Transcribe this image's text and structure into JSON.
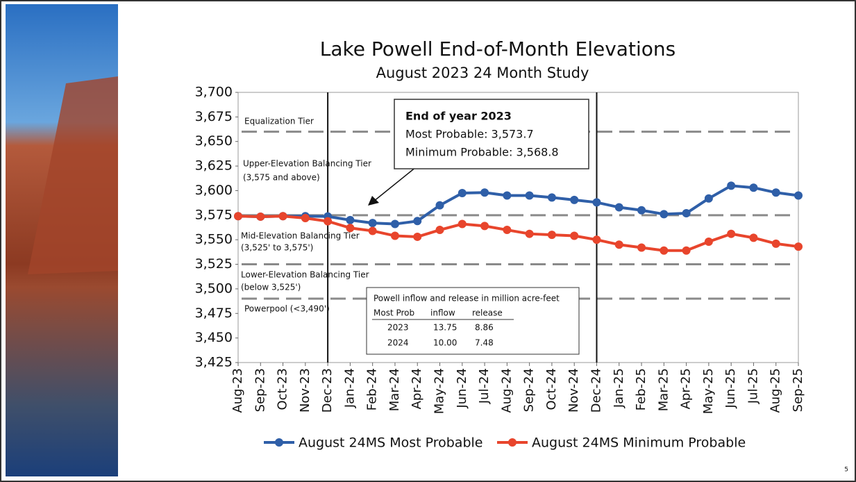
{
  "chart_data": {
    "type": "line",
    "title": "Lake Powell End-of-Month Elevations",
    "subtitle": "August 2023  24 Month Study",
    "categories": [
      "Aug-23",
      "Sep-23",
      "Oct-23",
      "Nov-23",
      "Dec-23",
      "Jan-24",
      "Feb-24",
      "Mar-24",
      "Apr-24",
      "May-24",
      "Jun-24",
      "Jul-24",
      "Aug-24",
      "Sep-24",
      "Oct-24",
      "Nov-24",
      "Dec-24",
      "Jan-25",
      "Feb-25",
      "Mar-25",
      "Apr-25",
      "May-25",
      "Jun-25",
      "Jul-25",
      "Aug-25",
      "Sep-25"
    ],
    "series": [
      {
        "name": "August 24MS Most Probable",
        "color": "#2f5fa8",
        "values": [
          3574,
          3573.5,
          3574,
          3574,
          3573.7,
          3570,
          3567,
          3566,
          3569,
          3585,
          3597.5,
          3598,
          3595,
          3595,
          3593,
          3590.5,
          3588,
          3583,
          3580,
          3576,
          3577,
          3592,
          3605,
          3603,
          3598,
          3595
        ]
      },
      {
        "name": "August 24MS Minimum Probable",
        "color": "#e8452c",
        "values": [
          3574,
          3573.5,
          3574,
          3572,
          3568.8,
          3562,
          3559,
          3554,
          3553,
          3560,
          3566,
          3564,
          3560,
          3556,
          3555,
          3554,
          3550,
          3545,
          3542,
          3539,
          3539,
          3548,
          3556,
          3552,
          3546,
          3543
        ]
      }
    ],
    "ylim": [
      3425,
      3700
    ],
    "yticks": [
      {
        "value": 3425,
        "label": "3,425"
      },
      {
        "value": 3450,
        "label": "3,450"
      },
      {
        "value": 3475,
        "label": "3,475"
      },
      {
        "value": 3500,
        "label": "3,500"
      },
      {
        "value": 3525,
        "label": "3,525"
      },
      {
        "value": 3550,
        "label": "3,550"
      },
      {
        "value": 3575,
        "label": "3,575"
      },
      {
        "value": 3600,
        "label": "3,600"
      },
      {
        "value": 3625,
        "label": "3,625"
      },
      {
        "value": 3650,
        "label": "3,650"
      },
      {
        "value": 3675,
        "label": "3,675"
      },
      {
        "value": 3700,
        "label": "3,700"
      }
    ],
    "grid": false,
    "reference_lines": [
      3660,
      3575,
      3525,
      3490
    ],
    "vertical_lines": [
      "Dec-23",
      "Dec-24"
    ],
    "tier_labels": [
      "Equalization Tier",
      "Upper-Elevation Balancing Tier",
      "(3,575 and above)",
      "Mid-Elevation Balancing Tier",
      "(3,525' to 3,575')",
      "Lower-Elevation Balancing Tier",
      "(below 3,525')",
      "Powerpool (<3,490')"
    ],
    "annotation": {
      "title": "End of year 2023",
      "lines": [
        "Most Probable: 3,573.7",
        "Minimum Probable: 3,568.8"
      ]
    },
    "table": {
      "title": "Powell inflow and release in million acre-feet",
      "header": [
        "Most Prob",
        "inflow",
        "release"
      ],
      "rows": [
        [
          "2023",
          "13.75",
          "8.86"
        ],
        [
          "2024",
          "10.00",
          "7.48"
        ]
      ]
    },
    "legend": "bottom",
    "page_number": "5"
  }
}
